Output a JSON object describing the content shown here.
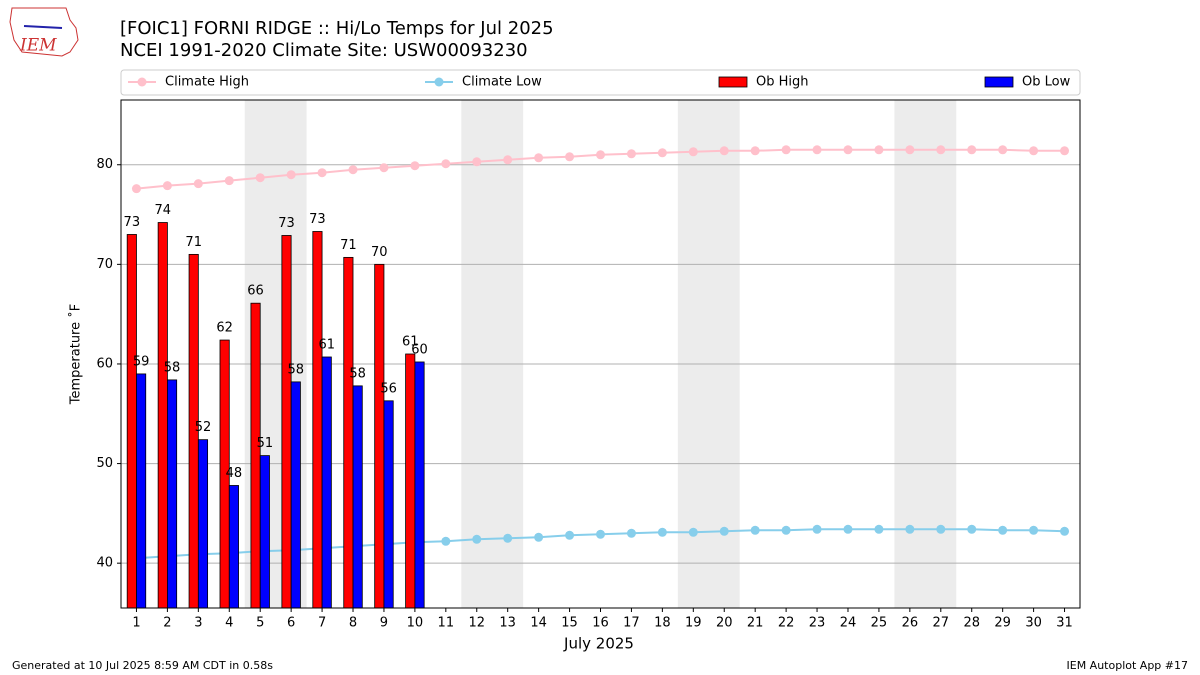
{
  "logo": "IEM",
  "footer_left": "Generated at 10 Jul 2025 8:59 AM CDT in 0.58s",
  "footer_right": "IEM Autoplot App #17",
  "chart_data": {
    "type": "bar",
    "title": "[FOIC1] FORNI RIDGE :: Hi/Lo Temps for Jul 2025",
    "subtitle": "NCEI 1991-2020 Climate Site: USW00093230",
    "x_label": "July 2025",
    "y_label": "Temperature ˚F",
    "x": [
      1,
      2,
      3,
      4,
      5,
      6,
      7,
      8,
      9,
      10,
      11,
      12,
      13,
      14,
      15,
      16,
      17,
      18,
      19,
      20,
      21,
      22,
      23,
      24,
      25,
      26,
      27,
      28,
      29,
      30,
      31
    ],
    "xlim": [
      0.5,
      31.5
    ],
    "xticks": [
      1,
      2,
      3,
      4,
      5,
      6,
      7,
      8,
      9,
      10,
      11,
      12,
      13,
      14,
      15,
      16,
      17,
      18,
      19,
      20,
      21,
      22,
      23,
      24,
      25,
      26,
      27,
      28,
      29,
      30,
      31
    ],
    "ylim": [
      35.5,
      86.5
    ],
    "yticks": [
      40,
      50,
      60,
      70,
      80
    ],
    "grid": true,
    "shaded_spans": [
      [
        4.5,
        6.5
      ],
      [
        11.5,
        13.5
      ],
      [
        18.5,
        20.5
      ],
      [
        25.5,
        27.5
      ]
    ],
    "shade_color": "#ececec",
    "series": [
      {
        "name": "Climate High",
        "type": "line",
        "color": "#ffc0cb",
        "values": [
          77.6,
          77.9,
          78.1,
          78.4,
          78.7,
          79.0,
          79.2,
          79.5,
          79.7,
          79.9,
          80.1,
          80.3,
          80.5,
          80.7,
          80.8,
          81.0,
          81.1,
          81.2,
          81.3,
          81.4,
          81.4,
          81.5,
          81.5,
          81.5,
          81.5,
          81.5,
          81.5,
          81.5,
          81.5,
          81.4,
          81.4
        ]
      },
      {
        "name": "Climate Low",
        "type": "line",
        "color": "#87ceeb",
        "values": [
          40.5,
          40.7,
          40.9,
          41.0,
          41.2,
          41.3,
          41.5,
          41.7,
          41.9,
          42.1,
          42.2,
          42.4,
          42.5,
          42.6,
          42.8,
          42.9,
          43.0,
          43.1,
          43.1,
          43.2,
          43.3,
          43.3,
          43.4,
          43.4,
          43.4,
          43.4,
          43.4,
          43.4,
          43.3,
          43.3,
          43.2
        ]
      },
      {
        "name": "Ob High",
        "type": "bar",
        "color": "#ff0000",
        "values": [
          73.0,
          74.2,
          71.0,
          62.4,
          66.1,
          72.9,
          73.3,
          70.7,
          70.0,
          61.0,
          null,
          null,
          null,
          null,
          null,
          null,
          null,
          null,
          null,
          null,
          null,
          null,
          null,
          null,
          null,
          null,
          null,
          null,
          null,
          null,
          null
        ],
        "value_labels": [
          "73",
          "74",
          "71",
          "62",
          "66",
          "73",
          "73",
          "71",
          "70",
          "61",
          null,
          null,
          null,
          null,
          null,
          null,
          null,
          null,
          null,
          null,
          null,
          null,
          null,
          null,
          null,
          null,
          null,
          null,
          null,
          null,
          null
        ]
      },
      {
        "name": "Ob Low",
        "type": "bar",
        "color": "#0000ff",
        "values": [
          59.0,
          58.4,
          52.4,
          47.8,
          50.8,
          58.2,
          60.7,
          57.8,
          56.3,
          60.2,
          null,
          null,
          null,
          null,
          null,
          null,
          null,
          null,
          null,
          null,
          null,
          null,
          null,
          null,
          null,
          null,
          null,
          null,
          null,
          null,
          null
        ],
        "value_labels": [
          "59",
          "58",
          "52",
          "48",
          "51",
          "58",
          "61",
          "58",
          "56",
          "60",
          null,
          null,
          null,
          null,
          null,
          null,
          null,
          null,
          null,
          null,
          null,
          null,
          null,
          null,
          null,
          null,
          null,
          null,
          null,
          null,
          null
        ]
      }
    ]
  }
}
